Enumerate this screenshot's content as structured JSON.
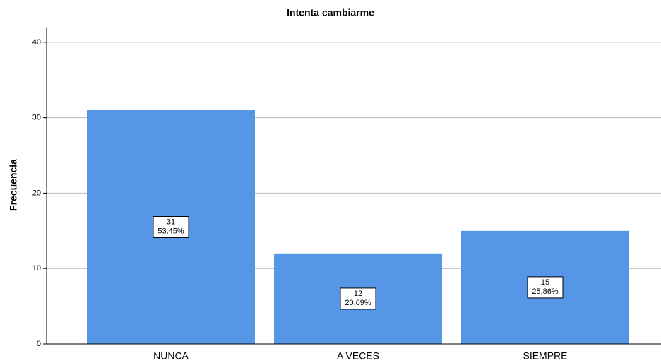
{
  "chart_data": {
    "type": "bar",
    "title": "Intenta cambiarme",
    "y_label": "Frecuencia",
    "categories": [
      "NUNCA",
      "A VECES",
      "SIEMPRE"
    ],
    "values": [
      31,
      12,
      15
    ],
    "percent_labels": [
      "53,45%",
      "20,69%",
      "25,86%"
    ],
    "color": "#5596e6",
    "ylim": [
      0,
      42
    ],
    "yticks": [
      0,
      10,
      20,
      30,
      40
    ],
    "grid": true
  }
}
